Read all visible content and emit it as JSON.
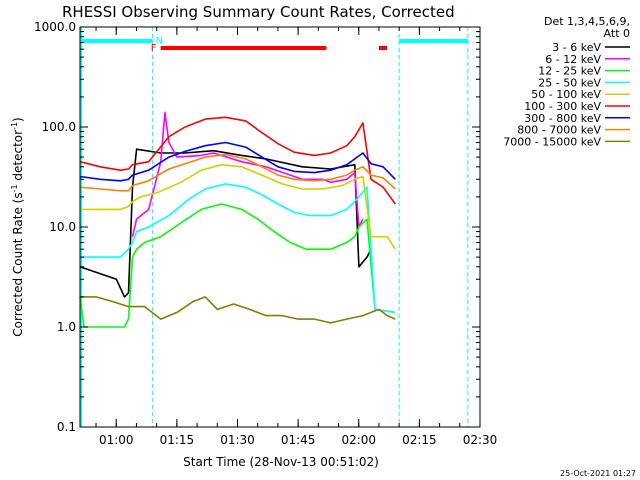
{
  "chart_data": {
    "type": "line",
    "title": "RHESSI Observing Summary Count Rates, Corrected",
    "xlabel": "Start Time (28-Nov-13 00:51:02)",
    "ylabel_prefix": "Corrected Count Rate (s",
    "ylabel_sup1": "-1",
    "ylabel_mid": " detector",
    "ylabel_sup2": "-1",
    "ylabel_suffix": ")",
    "y_scale": "log",
    "ylim": [
      0.1,
      1000
    ],
    "y_ticks": [
      "0.1",
      "1.0",
      "10.0",
      "100.0",
      "1000.0"
    ],
    "xlim": [
      "00:51:02",
      "02:30"
    ],
    "x_ticks": [
      "01:00",
      "01:15",
      "01:30",
      "01:45",
      "02:00",
      "02:15",
      "02:30"
    ],
    "legend_position": "right",
    "legend_header": [
      "Det 1,3,4,5,6,9,",
      "Att 0"
    ],
    "flags": {
      "flare_label": "F",
      "night_label": "N",
      "night_color": "#00ffff",
      "flare_color": "#ff0000"
    },
    "night_intervals": [
      [
        "00:51:02",
        "01:09"
      ],
      [
        "02:10",
        "02:27"
      ]
    ],
    "flare_intervals": [
      [
        "01:11",
        "01:52"
      ],
      [
        "02:05",
        "02:07"
      ]
    ],
    "series": [
      {
        "name": "3 - 6 keV",
        "color": "#000000",
        "points": [
          [
            0,
            4
          ],
          [
            9,
            3
          ],
          [
            11,
            2
          ],
          [
            12,
            2.2
          ],
          [
            13,
            25
          ],
          [
            14,
            60
          ],
          [
            20,
            55
          ],
          [
            26,
            55
          ],
          [
            33,
            58
          ],
          [
            40,
            52
          ],
          [
            46,
            48
          ],
          [
            55,
            40
          ],
          [
            62,
            38
          ],
          [
            68,
            42
          ],
          [
            69,
            4
          ],
          [
            71,
            5
          ],
          [
            72,
            6
          ]
        ]
      },
      {
        "name": "6 - 12 keV",
        "color": "#ff00ff",
        "points": [
          [
            13,
            8
          ],
          [
            14,
            12
          ],
          [
            17,
            15
          ],
          [
            20,
            45
          ],
          [
            21,
            140
          ],
          [
            22,
            70
          ],
          [
            24,
            50
          ],
          [
            30,
            52
          ],
          [
            33,
            55
          ],
          [
            40,
            45
          ],
          [
            46,
            40
          ],
          [
            55,
            30
          ],
          [
            60,
            30
          ],
          [
            62,
            28
          ],
          [
            66,
            30
          ],
          [
            68,
            35
          ],
          [
            69,
            10
          ],
          [
            70,
            12
          ]
        ]
      },
      {
        "name": "12 - 25 keV",
        "color": "#00ff00",
        "points": [
          [
            0,
            2
          ],
          [
            1,
            1
          ],
          [
            10,
            1
          ],
          [
            11,
            1
          ],
          [
            12,
            1.2
          ],
          [
            13,
            5
          ],
          [
            14,
            6
          ],
          [
            16,
            7
          ],
          [
            20,
            8
          ],
          [
            25,
            11
          ],
          [
            30,
            15
          ],
          [
            35,
            17
          ],
          [
            40,
            15
          ],
          [
            44,
            12
          ],
          [
            48,
            9
          ],
          [
            52,
            7
          ],
          [
            56,
            6
          ],
          [
            62,
            6
          ],
          [
            66,
            7
          ],
          [
            68,
            8
          ],
          [
            69,
            10
          ],
          [
            71,
            12
          ],
          [
            73,
            1.5
          ],
          [
            78,
            1.4
          ]
        ]
      },
      {
        "name": "25 - 50 keV",
        "color": "#00ffff",
        "points": [
          [
            0,
            5
          ],
          [
            5,
            5
          ],
          [
            10,
            5
          ],
          [
            12,
            6
          ],
          [
            13,
            7
          ],
          [
            14,
            9
          ],
          [
            17,
            10
          ],
          [
            22,
            13
          ],
          [
            27,
            19
          ],
          [
            31,
            24
          ],
          [
            36,
            27
          ],
          [
            41,
            25
          ],
          [
            45,
            21
          ],
          [
            49,
            17
          ],
          [
            53,
            14
          ],
          [
            57,
            13
          ],
          [
            62,
            13
          ],
          [
            66,
            15
          ],
          [
            68,
            18
          ],
          [
            69,
            20
          ],
          [
            71,
            25
          ],
          [
            73,
            1.5
          ],
          [
            78,
            1.4
          ]
        ]
      },
      {
        "name": "50 - 100 keV",
        "color": "#d0d000",
        "points": [
          [
            0,
            15
          ],
          [
            5,
            15
          ],
          [
            10,
            15
          ],
          [
            12,
            16
          ],
          [
            13,
            18
          ],
          [
            15,
            20
          ],
          [
            19,
            22
          ],
          [
            25,
            28
          ],
          [
            30,
            37
          ],
          [
            35,
            42
          ],
          [
            40,
            40
          ],
          [
            45,
            33
          ],
          [
            50,
            27
          ],
          [
            55,
            24
          ],
          [
            60,
            24
          ],
          [
            65,
            26
          ],
          [
            68,
            30
          ],
          [
            70,
            32
          ],
          [
            72,
            8
          ],
          [
            76,
            8
          ],
          [
            78,
            6
          ]
        ]
      },
      {
        "name": "100 - 300 keV",
        "color": "#ff0000",
        "points": [
          [
            0,
            45
          ],
          [
            5,
            40
          ],
          [
            10,
            37
          ],
          [
            12,
            38
          ],
          [
            13,
            42
          ],
          [
            17,
            45
          ],
          [
            22,
            80
          ],
          [
            26,
            100
          ],
          [
            31,
            120
          ],
          [
            36,
            125
          ],
          [
            41,
            115
          ],
          [
            45,
            88
          ],
          [
            49,
            68
          ],
          [
            53,
            56
          ],
          [
            58,
            52
          ],
          [
            62,
            55
          ],
          [
            66,
            65
          ],
          [
            68,
            80
          ],
          [
            70,
            110
          ],
          [
            72,
            30
          ],
          [
            75,
            25
          ],
          [
            78,
            17
          ]
        ]
      },
      {
        "name": "300 - 800 keV",
        "color": "#0000ff",
        "points": [
          [
            0,
            32
          ],
          [
            5,
            30
          ],
          [
            10,
            29
          ],
          [
            12,
            30
          ],
          [
            13,
            33
          ],
          [
            17,
            37
          ],
          [
            22,
            50
          ],
          [
            26,
            57
          ],
          [
            31,
            65
          ],
          [
            36,
            70
          ],
          [
            41,
            63
          ],
          [
            45,
            50
          ],
          [
            49,
            40
          ],
          [
            53,
            36
          ],
          [
            58,
            35
          ],
          [
            62,
            37
          ],
          [
            66,
            42
          ],
          [
            68,
            48
          ],
          [
            70,
            55
          ],
          [
            72,
            43
          ],
          [
            75,
            40
          ],
          [
            78,
            30
          ]
        ]
      },
      {
        "name": "800 - 7000 keV",
        "color": "#ff8000",
        "points": [
          [
            0,
            25
          ],
          [
            5,
            24
          ],
          [
            10,
            23
          ],
          [
            12,
            23
          ],
          [
            13,
            26
          ],
          [
            17,
            29
          ],
          [
            22,
            38
          ],
          [
            26,
            43
          ],
          [
            31,
            50
          ],
          [
            36,
            53
          ],
          [
            41,
            48
          ],
          [
            45,
            40
          ],
          [
            49,
            33
          ],
          [
            53,
            30
          ],
          [
            58,
            29
          ],
          [
            62,
            30
          ],
          [
            66,
            33
          ],
          [
            68,
            37
          ],
          [
            70,
            40
          ],
          [
            72,
            33
          ],
          [
            75,
            31
          ],
          [
            78,
            24
          ]
        ]
      },
      {
        "name": "7000 - 15000 keV",
        "color": "#808000",
        "points": [
          [
            0,
            2
          ],
          [
            4,
            2
          ],
          [
            8,
            1.8
          ],
          [
            12,
            1.6
          ],
          [
            16,
            1.6
          ],
          [
            20,
            1.2
          ],
          [
            24,
            1.4
          ],
          [
            28,
            1.8
          ],
          [
            31,
            2
          ],
          [
            34,
            1.5
          ],
          [
            38,
            1.7
          ],
          [
            42,
            1.5
          ],
          [
            46,
            1.3
          ],
          [
            50,
            1.3
          ],
          [
            54,
            1.2
          ],
          [
            58,
            1.2
          ],
          [
            62,
            1.1
          ],
          [
            66,
            1.2
          ],
          [
            70,
            1.3
          ],
          [
            72,
            1.4
          ],
          [
            74,
            1.5
          ],
          [
            76,
            1.3
          ],
          [
            78,
            1.2
          ]
        ]
      }
    ]
  },
  "footer": {
    "timestamp": "25-Oct-2021 01:27"
  }
}
